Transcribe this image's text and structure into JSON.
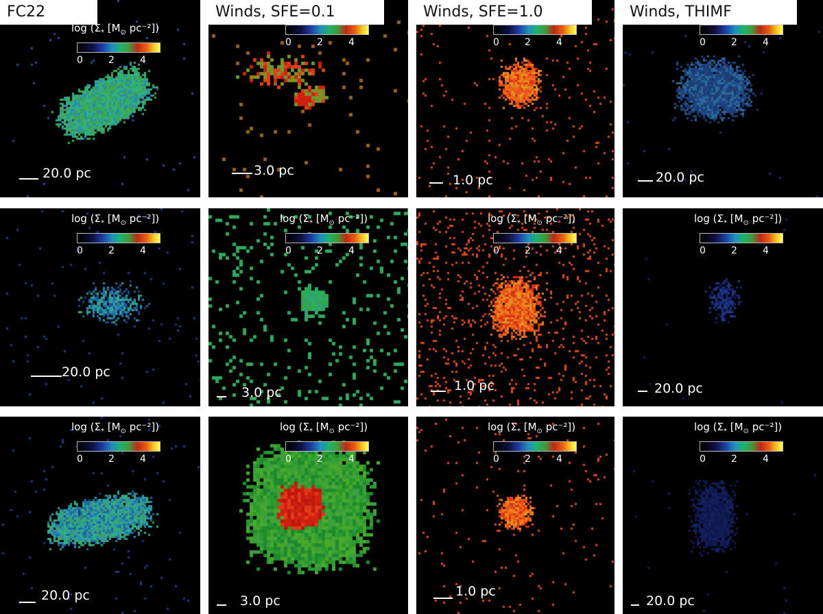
{
  "columns": [
    {
      "title": "FC22"
    },
    {
      "title": "Winds, SFE=0.1"
    },
    {
      "title": "Winds, SFE=1.0"
    },
    {
      "title": "Winds, THIMF"
    }
  ],
  "colorbar": {
    "label_prefix": "log (Σ",
    "label_sub": "*",
    "label_mid": " [M",
    "label_sub2": "⊙",
    "label_suffix": " pc⁻²])",
    "ticks": [
      "0",
      "2",
      "4"
    ]
  },
  "scale_labels": [
    [
      "20.0 pc",
      "3.0 pc",
      "1.0 pc",
      "20.0 pc"
    ],
    [
      "20.0 pc",
      "3.0 pc",
      "1.0 pc",
      "20.0 pc"
    ],
    [
      "20.0 pc",
      "3.0 pc",
      "1.0 pc",
      "20.0 pc"
    ]
  ],
  "colors": {
    "background": "#000000",
    "teal": "#2fb08a",
    "green": "#3aa63a",
    "orange": "#e8551a",
    "red": "#d02010",
    "blue": "#2a4aa0"
  }
}
